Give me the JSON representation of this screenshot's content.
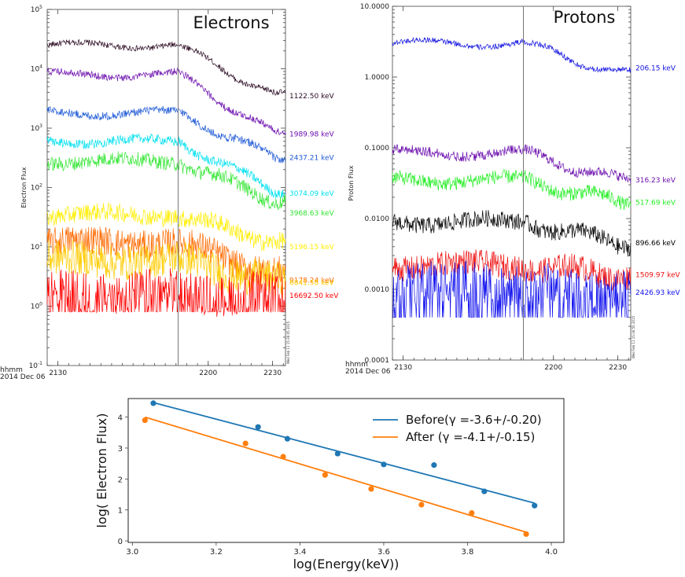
{
  "chart_data": [
    {
      "type": "line",
      "title": "Electrons",
      "ylabel": "Electron Flux",
      "yscale": "log",
      "ylim": [
        0.1,
        100000
      ],
      "y_tick_labels": [
        "10^-1",
        "10^0",
        "10^1",
        "10^2",
        "10^3",
        "10^4",
        "10^5"
      ],
      "xlim": [
        2125,
        2236
      ],
      "x_ticks": [
        2130,
        2200,
        2230
      ],
      "x_tick_labels": [
        "2130",
        "2200",
        "2230"
      ],
      "time_label": "hhmm",
      "date_label": "2014 Dec 06",
      "event_line": 2186,
      "stamp": "Wed Feb 11 15:36:05 2015",
      "series": [
        {
          "name": "1122.50 keV",
          "color": "#2a0a22",
          "pre": 25000,
          "post": 3500,
          "noise": 0.05,
          "floor": null
        },
        {
          "name": "1989.98 keV",
          "color": "#6a0dad",
          "pre": 8000,
          "post": 800,
          "noise": 0.06,
          "floor": null
        },
        {
          "name": "2437.21 keV",
          "color": "#1f5ad6",
          "pre": 1800,
          "post": 320,
          "noise": 0.07,
          "floor": null
        },
        {
          "name": "3074.09 keV",
          "color": "#00e0f0",
          "pre": 600,
          "post": 90,
          "noise": 0.08,
          "floor": null
        },
        {
          "name": "3968.63 keV",
          "color": "#33e633",
          "pre": 280,
          "post": 60,
          "noise": 0.12,
          "floor": null
        },
        {
          "name": "5196.15 keV",
          "color": "#ffee00",
          "pre": 35,
          "post": 12,
          "noise": 0.15,
          "floor": null
        },
        {
          "name": "9178.24 keV",
          "color": "#ff6a00",
          "pre": 12,
          "post": 3.5,
          "noise": 0.25,
          "floor": null
        },
        {
          "name": "6841.58 keV",
          "color": "#ffcc00",
          "pre": 6,
          "post": 2.5,
          "noise": 0.3,
          "floor": null
        },
        {
          "name": "16692.50 keV",
          "color": "#ff0000",
          "pre": 1.8,
          "post": 1.5,
          "noise": 0.35,
          "floor": 0.8
        }
      ]
    },
    {
      "type": "line",
      "title": "Protons",
      "ylabel": "Proton Flux",
      "yscale": "log",
      "ylim": [
        0.0001,
        10
      ],
      "y_tick_labels": [
        "0.0001",
        "0.0010",
        "0.0100",
        "0.1000",
        "1.0000",
        "10.0000"
      ],
      "xlim": [
        2125,
        2236
      ],
      "x_ticks": [
        2130,
        2200,
        2230
      ],
      "x_tick_labels": [
        "2130",
        "2200",
        "2230"
      ],
      "time_label": "hhmm",
      "date_label": "2014 Dec 06",
      "event_line": 2186,
      "stamp": "Wed Feb 11 15:36:55 2015",
      "series": [
        {
          "name": "206.15 keV",
          "color": "#1010e0",
          "pre": 3.0,
          "post": 1.1,
          "noise": 0.04,
          "floor": null
        },
        {
          "name": "316.23 keV",
          "color": "#6a0dad",
          "pre": 0.085,
          "post": 0.035,
          "noise": 0.07,
          "floor": null
        },
        {
          "name": "517.69 keV",
          "color": "#22ee22",
          "pre": 0.035,
          "post": 0.017,
          "noise": 0.1,
          "floor": null
        },
        {
          "name": "896.66 keV",
          "color": "#000000",
          "pre": 0.009,
          "post": 0.0045,
          "noise": 0.12,
          "floor": null
        },
        {
          "name": "1509.97 keV",
          "color": "#ee1111",
          "pre": 0.0022,
          "post": 0.0016,
          "noise": 0.18,
          "floor": null
        },
        {
          "name": "2426.93 keV",
          "color": "#1010ee",
          "pre": 0.0012,
          "post": 0.0009,
          "noise": 0.3,
          "floor": 0.0004
        }
      ]
    },
    {
      "type": "scatter",
      "xlabel": "log(Energy(keV))",
      "ylabel": "log( Electron Flux)",
      "xlim": [
        2.99,
        4.03
      ],
      "ylim": [
        -0.05,
        4.6
      ],
      "x_ticks": [
        3.0,
        3.2,
        3.4,
        3.6,
        3.8,
        4.0
      ],
      "x_tick_labels": [
        "3.0",
        "3.2",
        "3.4",
        "3.6",
        "3.8",
        "4.0"
      ],
      "y_ticks": [
        0,
        1,
        2,
        3,
        4
      ],
      "y_tick_labels": [
        "0",
        "1",
        "2",
        "3",
        "4"
      ],
      "legend_position": "top-right",
      "series": [
        {
          "name": "Before(γ =-3.6+/-0.20)",
          "color": "#1f77b4",
          "points": [
            [
              3.05,
              4.45
            ],
            [
              3.3,
              3.68
            ],
            [
              3.37,
              3.3
            ],
            [
              3.49,
              2.82
            ],
            [
              3.6,
              2.47
            ],
            [
              3.72,
              2.45
            ],
            [
              3.84,
              1.6
            ],
            [
              3.96,
              1.14
            ]
          ],
          "fit": [
            [
              3.05,
              4.47
            ],
            [
              3.96,
              1.22
            ]
          ]
        },
        {
          "name": "After (γ =-4.1+/-0.15)",
          "color": "#ff7f0e",
          "points": [
            [
              3.03,
              3.9
            ],
            [
              3.27,
              3.15
            ],
            [
              3.36,
              2.72
            ],
            [
              3.46,
              2.13
            ],
            [
              3.57,
              1.68
            ],
            [
              3.69,
              1.17
            ],
            [
              3.81,
              0.9
            ],
            [
              3.94,
              0.22
            ]
          ],
          "fit": [
            [
              3.03,
              4.0
            ],
            [
              3.94,
              0.28
            ]
          ]
        }
      ]
    }
  ]
}
